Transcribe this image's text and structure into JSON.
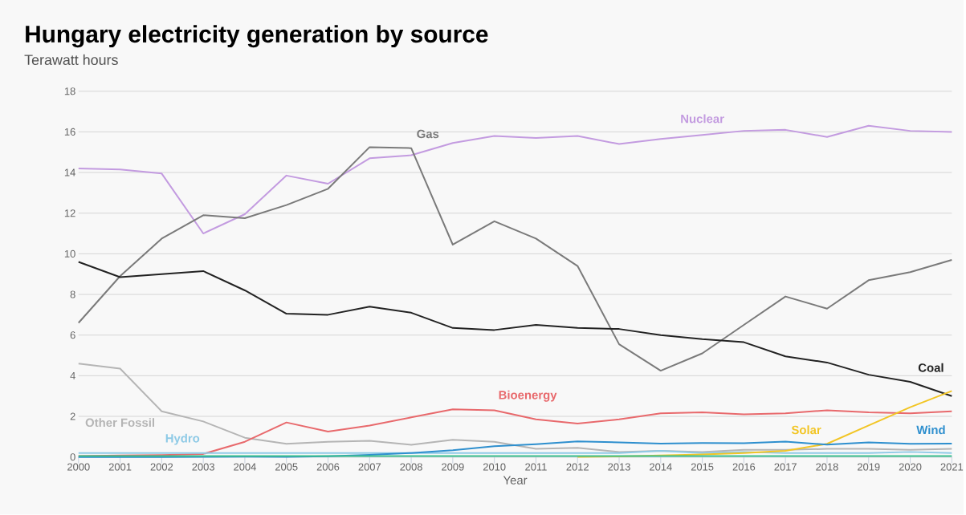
{
  "chart_data": {
    "type": "line",
    "title": "Hungary electricity generation by source",
    "subtitle": "Terawatt hours",
    "xlabel": "Year",
    "x": [
      2000,
      2001,
      2002,
      2003,
      2004,
      2005,
      2006,
      2007,
      2008,
      2009,
      2010,
      2011,
      2012,
      2013,
      2014,
      2015,
      2016,
      2017,
      2018,
      2019,
      2020,
      2021
    ],
    "xlim": [
      2000,
      2021
    ],
    "xticks": [
      2000,
      2001,
      2002,
      2003,
      2004,
      2005,
      2006,
      2007,
      2008,
      2009,
      2010,
      2011,
      2012,
      2013,
      2014,
      2015,
      2016,
      2017,
      2018,
      2019,
      2020,
      2021
    ],
    "ylim": [
      0,
      18
    ],
    "yticks": [
      0,
      2,
      4,
      6,
      8,
      10,
      12,
      14,
      16,
      18
    ],
    "grid": "y",
    "series": [
      {
        "name": "Nuclear",
        "color": "#c39be0",
        "values": [
          14.2,
          14.15,
          13.95,
          11.0,
          11.95,
          13.85,
          13.45,
          14.7,
          14.85,
          15.45,
          15.8,
          15.7,
          15.8,
          15.4,
          15.65,
          15.85,
          16.05,
          16.1,
          15.75,
          16.3,
          16.05,
          16.0
        ]
      },
      {
        "name": "Gas",
        "color": "#7a7a7a",
        "values": [
          6.6,
          8.9,
          10.75,
          11.9,
          11.75,
          12.4,
          13.2,
          15.25,
          15.2,
          10.45,
          11.6,
          10.75,
          9.4,
          5.55,
          4.25,
          5.1,
          6.5,
          7.9,
          7.3,
          8.7,
          9.1,
          9.7
        ]
      },
      {
        "name": "Coal",
        "color": "#222222",
        "values": [
          9.6,
          8.85,
          9.0,
          9.15,
          8.2,
          7.05,
          7.0,
          7.4,
          7.1,
          6.35,
          6.25,
          6.5,
          6.35,
          6.3,
          6.0,
          5.8,
          5.65,
          4.95,
          4.65,
          4.05,
          3.7,
          3.0
        ]
      },
      {
        "name": "Other Fossil",
        "color": "#b5b5b5",
        "values": [
          4.6,
          4.35,
          2.25,
          1.75,
          0.95,
          0.65,
          0.75,
          0.8,
          0.6,
          0.85,
          0.75,
          0.4,
          0.45,
          0.25,
          0.3,
          0.25,
          0.35,
          0.35,
          0.4,
          0.4,
          0.35,
          0.4
        ]
      },
      {
        "name": "Bioenergy",
        "color": "#e8696c",
        "values": [
          0.05,
          0.08,
          0.1,
          0.15,
          0.75,
          1.7,
          1.25,
          1.55,
          1.95,
          2.35,
          2.3,
          1.85,
          1.65,
          1.85,
          2.15,
          2.2,
          2.1,
          2.15,
          2.3,
          2.2,
          2.15,
          2.25
        ]
      },
      {
        "name": "Hydro",
        "color": "#8ecae6",
        "values": [
          0.2,
          0.2,
          0.2,
          0.2,
          0.2,
          0.2,
          0.2,
          0.2,
          0.2,
          0.2,
          0.2,
          0.2,
          0.2,
          0.2,
          0.3,
          0.2,
          0.25,
          0.2,
          0.2,
          0.2,
          0.25,
          0.2
        ]
      },
      {
        "name": "Solar",
        "color": "#f2c524",
        "values": [
          null,
          null,
          null,
          null,
          null,
          null,
          null,
          null,
          null,
          null,
          null,
          null,
          0.01,
          0.03,
          0.08,
          0.13,
          0.2,
          0.3,
          0.65,
          1.55,
          2.45,
          3.25
        ]
      },
      {
        "name": "Wind",
        "color": "#2e8fce",
        "values": [
          0,
          0,
          0,
          0.01,
          0.02,
          0.01,
          0.04,
          0.11,
          0.2,
          0.33,
          0.53,
          0.63,
          0.77,
          0.72,
          0.66,
          0.69,
          0.68,
          0.76,
          0.61,
          0.72,
          0.65,
          0.66
        ]
      },
      {
        "color": "#3cc08e",
        "values": [
          0.05,
          0.05,
          0.05,
          0.05,
          0.05,
          0.05,
          0.05,
          0.05,
          0.05,
          0.05,
          0.05,
          0.05,
          0.05,
          0.05,
          0.05,
          0.05,
          0.05,
          0.05,
          0.05,
          0.05,
          0.05,
          0.05
        ]
      }
    ]
  }
}
